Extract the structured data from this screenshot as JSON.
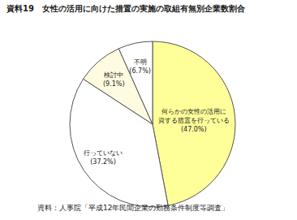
{
  "chart_data": {
    "type": "pie",
    "title": "資料19　女性の活用に向けた措置の実施の取組有無別企業数割合",
    "source": "資料：人事院「平成12年民間企業の勤務条件制度等調査」",
    "categories": [
      "何らかの女性の活用に\n資する措置を行っている",
      "行っていない",
      "検討中",
      "不明"
    ],
    "values": [
      47.0,
      37.2,
      9.1,
      6.7
    ],
    "value_labels": [
      "(47.0%)",
      "(37.2%)",
      "(9.1%)",
      "(6.7%)"
    ],
    "colors": [
      "#ffff99",
      "#ffffff",
      "#fffbe0",
      "#ffffff"
    ],
    "data_labels": true
  }
}
